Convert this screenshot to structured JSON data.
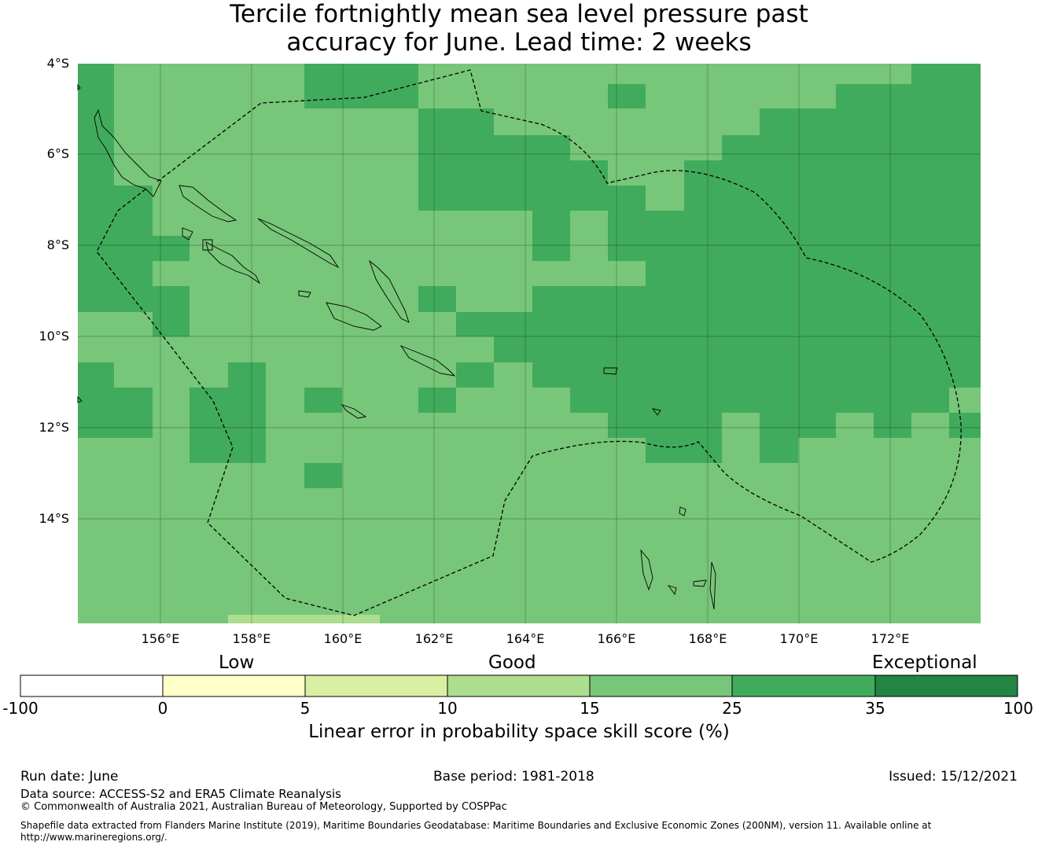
{
  "title": {
    "line1": "Tercile fortnightly mean sea level pressure past",
    "line2": "accuracy for June. Lead time: 2 weeks"
  },
  "map": {
    "lat_labels": [
      "4°S",
      "6°S",
      "8°S",
      "10°S",
      "12°S",
      "14°S"
    ],
    "lon_labels": [
      "156°E",
      "158°E",
      "160°E",
      "162°E",
      "164°E",
      "166°E",
      "168°E",
      "170°E",
      "172°E"
    ],
    "colors": {
      "band_10_15": "#addd8e",
      "band_15_25": "#78c679",
      "band_25_35": "#41ab5d"
    }
  },
  "colorbar": {
    "category_labels": {
      "low": "Low",
      "good": "Good",
      "exceptional": "Exceptional"
    },
    "ticks": [
      "-100",
      "0",
      "5",
      "10",
      "15",
      "25",
      "35",
      "100"
    ],
    "colors": [
      "#ffffff",
      "#ffffcc",
      "#d9f0a3",
      "#addd8e",
      "#78c679",
      "#41ab5d",
      "#238443"
    ],
    "title": "Linear error in probability space skill score (%)"
  },
  "footer": {
    "run_date": "Run date: June",
    "base_period": "Base period: 1981-2018",
    "issued": "Issued: 15/12/2021",
    "data_source": "Data source: ACCESS-S2 and ERA5 Climate Reanalysis",
    "copyright": "© Commonwealth of Australia 2021, Australian Bureau of Meteorology, Supported by COSPPac",
    "shapefile_line1": "Shapefile data extracted from Flanders Marine Institute (2019), Maritime Boundaries Geodatabase: Maritime Boundaries and Exclusive Economic Zones (200NM), version 11. Available online at",
    "shapefile_line2": "http://www.marineregions.org/."
  }
}
